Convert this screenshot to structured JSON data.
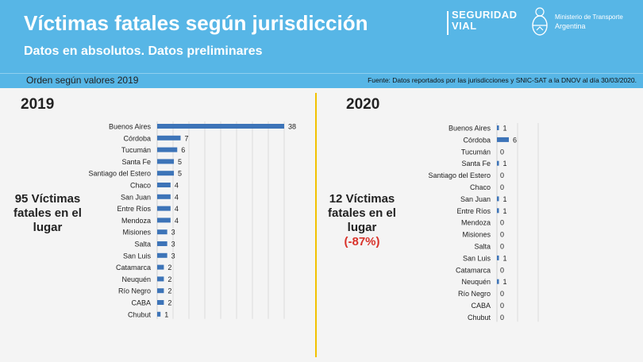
{
  "header": {
    "title": "Víctimas fatales según jurisdicción",
    "subtitle": "Datos en absolutos. Datos preliminares",
    "brand_line1": "SEGURIDAD",
    "brand_line2": "VIAL",
    "ministry_line1": "Ministerio de Transporte",
    "ministry_line2": "Argentina"
  },
  "subbar": {
    "order": "Orden según valores 2019",
    "source": "Fuente: Datos reportados por las jurisdicciones y SNIC-SAT a la DNOV al día 30/03/2020."
  },
  "colors": {
    "header_bg": "#57b6e6",
    "bar": "#3d74b8",
    "divider": "#f2c200",
    "change_text": "#d8322a"
  },
  "panel2019": {
    "year": "2019",
    "summary_line1": "95 Víctimas",
    "summary_line2": "fatales en el",
    "summary_line3": "lugar"
  },
  "panel2020": {
    "year": "2020",
    "summary_line1": "12 Víctimas",
    "summary_line2": "fatales en el",
    "summary_line3": "lugar",
    "change": "(-87%)"
  },
  "chart_data": [
    {
      "type": "bar",
      "orientation": "horizontal",
      "title": "2019",
      "categories": [
        "Buenos Aires",
        "Córdoba",
        "Tucumán",
        "Santa Fe",
        "Santiago del Estero",
        "Chaco",
        "San Juan",
        "Entre Ríos",
        "Mendoza",
        "Misiones",
        "Salta",
        "San Luis",
        "Catamarca",
        "Neuquén",
        "Río Negro",
        "CABA",
        "Chubut"
      ],
      "values": [
        38,
        7,
        6,
        5,
        5,
        4,
        4,
        4,
        4,
        3,
        3,
        3,
        2,
        2,
        2,
        2,
        1
      ],
      "xlim": [
        0,
        38
      ],
      "grid": true,
      "data_labels": true
    },
    {
      "type": "bar",
      "orientation": "horizontal",
      "title": "2020",
      "categories": [
        "Buenos Aires",
        "Córdoba",
        "Tucumán",
        "Santa Fe",
        "Santiago del Estero",
        "Chaco",
        "San Juan",
        "Entre Ríos",
        "Mendoza",
        "Misiones",
        "Salta",
        "San Luis",
        "Catamarca",
        "Neuquén",
        "Río Negro",
        "CABA",
        "Chubut"
      ],
      "values": [
        1,
        6,
        0,
        1,
        0,
        0,
        1,
        1,
        0,
        0,
        0,
        1,
        0,
        1,
        0,
        0,
        0
      ],
      "xlim": [
        0,
        12
      ],
      "grid": true,
      "data_labels": true
    }
  ]
}
